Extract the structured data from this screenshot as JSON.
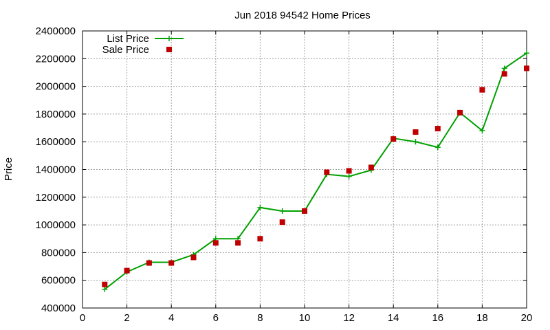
{
  "chart_data": {
    "type": "line",
    "title": "Jun 2018 94542 Home Prices",
    "xlabel": "",
    "ylabel": "Price",
    "xlim": [
      0,
      20
    ],
    "ylim": [
      400000,
      2400000
    ],
    "grid": true,
    "legend_position": "top-left",
    "x_ticks": [
      "0",
      "2",
      "4",
      "6",
      "8",
      "10",
      "12",
      "14",
      "16",
      "18",
      "20"
    ],
    "y_ticks": [
      "400000",
      "600000",
      "800000",
      "1000000",
      "1200000",
      "1400000",
      "1600000",
      "1800000",
      "2000000",
      "2200000",
      "2400000"
    ],
    "series": [
      {
        "name": "List Price",
        "style": "line-plus",
        "color": "#00a000",
        "x": [
          1,
          2,
          3,
          4,
          5,
          6,
          7,
          8,
          9,
          10,
          11,
          12,
          13,
          14,
          15,
          16,
          17,
          18,
          19,
          20
        ],
        "values": [
          535000,
          660000,
          730000,
          730000,
          785000,
          900000,
          900000,
          1125000,
          1100000,
          1100000,
          1365000,
          1350000,
          1395000,
          1625000,
          1600000,
          1560000,
          1810000,
          1680000,
          2130000,
          2240000
        ]
      },
      {
        "name": "Sale Price",
        "style": "square",
        "color": "#c00000",
        "x": [
          1,
          2,
          3,
          4,
          5,
          6,
          7,
          8,
          9,
          10,
          11,
          12,
          13,
          14,
          15,
          16,
          17,
          18,
          19,
          20
        ],
        "values": [
          570000,
          670000,
          725000,
          725000,
          765000,
          870000,
          870000,
          900000,
          1020000,
          1100000,
          1380000,
          1390000,
          1415000,
          1620000,
          1670000,
          1695000,
          1810000,
          1975000,
          2090000,
          2130000
        ]
      }
    ]
  }
}
